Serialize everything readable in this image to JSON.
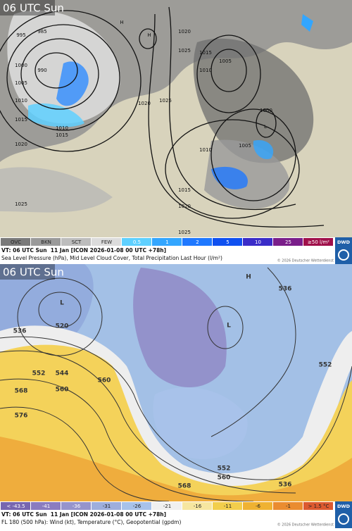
{
  "panels": [
    {
      "title": "06 UTC Sun",
      "legend": [
        {
          "label": "OVC",
          "color": "#7a7a7a"
        },
        {
          "label": "BKN",
          "color": "#9a9a9a"
        },
        {
          "label": "SCT",
          "color": "#bdbdbd"
        },
        {
          "label": "FEW",
          "color": "#dcdcdc"
        },
        {
          "label": "0.5",
          "color": "#5fd0ff"
        },
        {
          "label": "1",
          "color": "#33a6ff"
        },
        {
          "label": "2",
          "color": "#1f78ff"
        },
        {
          "label": "5",
          "color": "#0f50f0"
        },
        {
          "label": "10",
          "color": "#3a2cc8"
        },
        {
          "label": "25",
          "color": "#7a1e8a"
        },
        {
          "label": "≥50 l/m²",
          "color": "#a0104a"
        }
      ],
      "valid_time": "VT: 06 UTC Sun  11 Jan [ICON 2026-01-08 00 UTC +78h]",
      "description": "Sea Level Pressure (hPa), Mid Level Cloud Cover, Total Precipitation Last Hour (l/m²)",
      "copyright": "© 2026 Deutscher Wetterdienst",
      "logo": "DWD",
      "contour_labels": [
        "995",
        "985",
        "1000",
        "990",
        "1005",
        "1010",
        "1015",
        "1020",
        "1010",
        "1015",
        "1020",
        "1025",
        "1020",
        "1025",
        "1005",
        "1010",
        "1015",
        "1000",
        "1005",
        "1010",
        "1015",
        "1020",
        "1025",
        "1025",
        "H",
        "H",
        "L"
      ]
    },
    {
      "title": "06 UTC Sun",
      "legend": [
        {
          "label": "< -43.5",
          "color": "#7866b0"
        },
        {
          "label": "-41",
          "color": "#8a7cc0"
        },
        {
          "label": "-36",
          "color": "#9694cc"
        },
        {
          "label": "-31",
          "color": "#9eaedc"
        },
        {
          "label": "-26",
          "color": "#a8c2ea"
        },
        {
          "label": "-21",
          "color": "#f0f0f0"
        },
        {
          "label": "-16",
          "color": "#f6e6a0"
        },
        {
          "label": "-11",
          "color": "#f2ce4c"
        },
        {
          "label": "-6",
          "color": "#efb232"
        },
        {
          "label": "-1",
          "color": "#ea8c30"
        },
        {
          "label": "> 1.5 °C",
          "color": "#dc5a30"
        }
      ],
      "valid_time": "VT: 06 UTC Sun  11 Jan [ICON 2026-01-08 00 UTC +78h]",
      "description": "FL 180 (500 hPa): Wind (kt), Temperature (°C), Geopotential (gpdm)",
      "copyright": "© 2026 Deutscher Wetterdienst",
      "logo": "DWD",
      "contour_labels": [
        "520",
        "536",
        "544",
        "552",
        "560",
        "560",
        "568",
        "576",
        "536",
        "552",
        "552",
        "560",
        "568",
        "536",
        "L",
        "L",
        "H"
      ]
    }
  ]
}
